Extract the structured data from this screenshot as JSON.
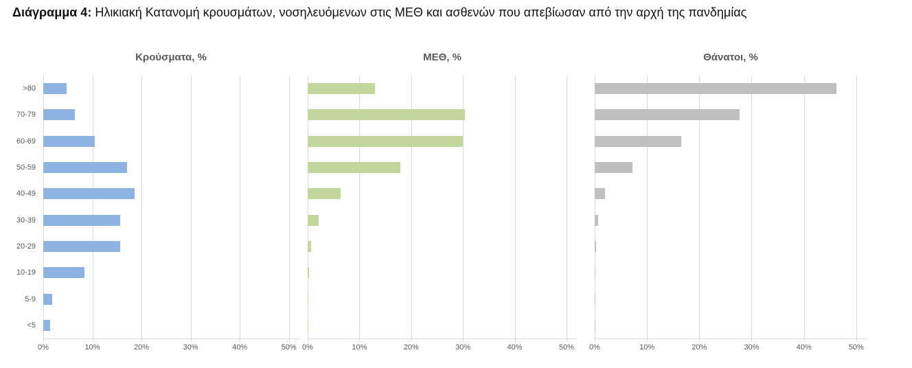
{
  "doc": {
    "title_prefix": "Διάγραμμα 4:",
    "title_rest": " Ηλικιακή Κατανομή κρουσμάτων, νοσηλευόμενων στις ΜΕΘ και ασθενών που απεβίωσαν από την αρχή της πανδημίας"
  },
  "chart_data": {
    "type": "bar",
    "orientation": "horizontal",
    "grid": true,
    "categories": [
      ">80",
      "70-79",
      "60-69",
      "50-59",
      "40-49",
      "30-39",
      "20-29",
      "10-19",
      "5-9",
      "<5"
    ],
    "x_ticks": [
      "0%",
      "10%",
      "20%",
      "30%",
      "40%",
      "50%"
    ],
    "x_tick_values": [
      0,
      10,
      20,
      30,
      40,
      50
    ],
    "xlim": [
      0,
      52
    ],
    "panels": [
      {
        "title": "Κρούσματα, %",
        "color": "#8db3e2",
        "values": [
          4.8,
          6.4,
          10.5,
          17,
          18.6,
          15.6,
          15.6,
          8.4,
          1.8,
          1.4
        ]
      },
      {
        "title": "ΜΕΘ, %",
        "color": "#c3d69b",
        "values": [
          13,
          30.4,
          30,
          17.9,
          6.4,
          2.1,
          0.7,
          0.3,
          0.15,
          0.15
        ]
      },
      {
        "title": "Θάνατοι, %",
        "color": "#bfbfbf",
        "values": [
          46.2,
          27.7,
          16.5,
          7.2,
          2,
          0.7,
          0.2,
          0.1,
          0.05,
          0.1
        ]
      }
    ],
    "colors": {
      "gridline": "#d9d9d9",
      "axis_text": "#595959",
      "title_text": "#595959"
    }
  }
}
